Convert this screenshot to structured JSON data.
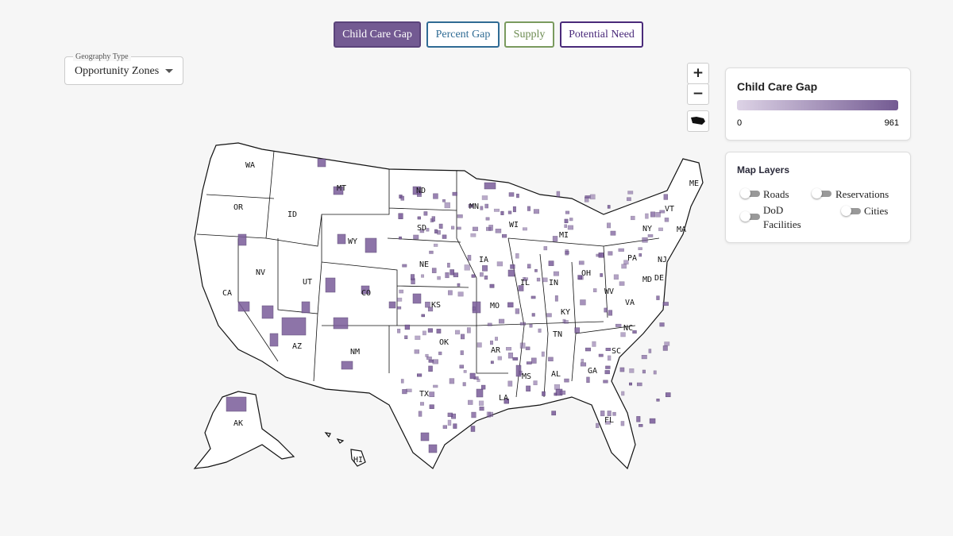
{
  "tabs": [
    "Child Care Gap",
    "Percent Gap",
    "Supply",
    "Potential Need"
  ],
  "geography": {
    "label": "Geography Type",
    "value": "Opportunity Zones"
  },
  "zoom": {
    "in": "+",
    "out": "−"
  },
  "legend": {
    "title": "Child Care Gap",
    "min": 0,
    "max": 961
  },
  "layers": {
    "title": "Map Layers",
    "items": [
      "Roads",
      "Reservations",
      "DoD Facilities",
      "Cities"
    ]
  },
  "states": [
    "WA",
    "OR",
    "CA",
    "NV",
    "ID",
    "MT",
    "WY",
    "UT",
    "AZ",
    "CO",
    "NM",
    "ND",
    "SD",
    "NE",
    "KS",
    "OK",
    "TX",
    "MN",
    "IA",
    "MO",
    "AR",
    "LA",
    "WI",
    "IL",
    "MI",
    "IN",
    "OH",
    "KY",
    "TN",
    "MS",
    "AL",
    "GA",
    "FL",
    "SC",
    "NC",
    "VA",
    "WV",
    "PA",
    "NY",
    "VT",
    "ME",
    "MA",
    "NJ",
    "MD",
    "DE",
    "AK",
    "HI"
  ]
}
